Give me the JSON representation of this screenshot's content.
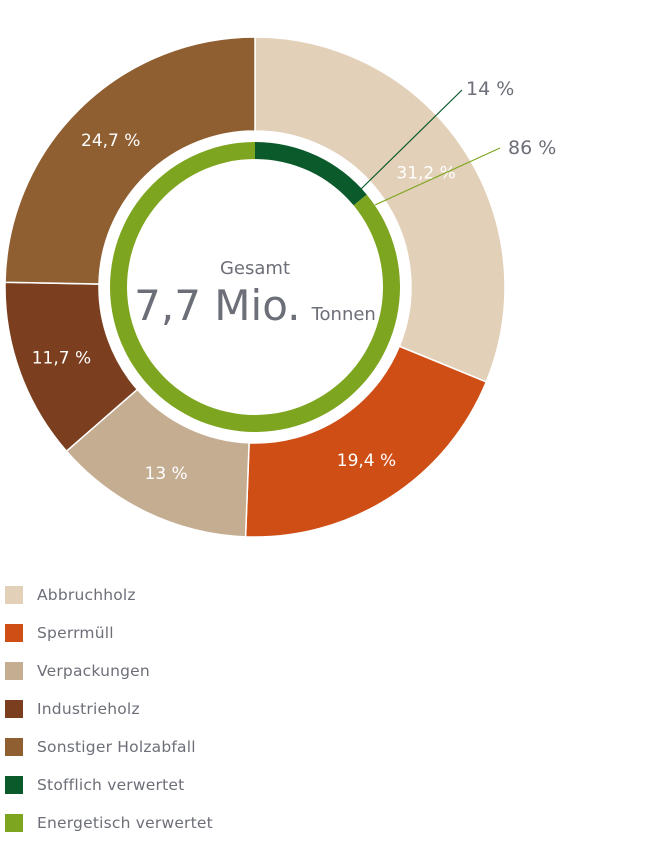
{
  "chart_data": {
    "type": "donut",
    "center": {
      "title": "Gesamt",
      "value": "7,7 Mio.",
      "unit": "Tonnen"
    },
    "outer_ring": {
      "categories": [
        "Abbruchholz",
        "Sperrmüll",
        "Verpackungen",
        "Industrieholz",
        "Sonstiger Holzabfall"
      ],
      "values": [
        31.2,
        19.4,
        13,
        11.7,
        24.7
      ],
      "labels": [
        "31,2 %",
        "19,4 %",
        "13 %",
        "11,7 %",
        "24,7 %"
      ],
      "colors": [
        "#e2d0b8",
        "#cf4e15",
        "#c5ad92",
        "#7b3f1f",
        "#8f5f32"
      ]
    },
    "inner_ring": {
      "categories": [
        "Stofflich verwertet",
        "Energetisch verwertet"
      ],
      "values": [
        14,
        86
      ],
      "labels": [
        "14 %",
        "86 %"
      ],
      "colors": [
        "#0b5a2b",
        "#7ea51f"
      ]
    }
  },
  "legend": [
    {
      "label": "Abbruchholz",
      "color": "#e2d0b8"
    },
    {
      "label": "Sperrmüll",
      "color": "#cf4e15"
    },
    {
      "label": "Verpackungen",
      "color": "#c5ad92"
    },
    {
      "label": "Industrieholz",
      "color": "#7b3f1f"
    },
    {
      "label": "Sonstiger Holzabfall",
      "color": "#8f5f32"
    },
    {
      "label": "Stofflich verwertet",
      "color": "#0b5a2b"
    },
    {
      "label": "Energetisch verwertet",
      "color": "#7ea51f"
    }
  ]
}
